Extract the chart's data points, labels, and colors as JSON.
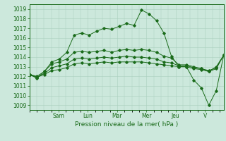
{
  "xlabel": "Pression niveau de la mer( hPa )",
  "bg_color": "#cce8dc",
  "grid_color": "#aacfbe",
  "line_color": "#1a6b1a",
  "ylim": [
    1008.5,
    1019.5
  ],
  "yticks": [
    1009,
    1010,
    1011,
    1012,
    1013,
    1014,
    1015,
    1016,
    1017,
    1018,
    1019
  ],
  "day_labels": [
    "Sam",
    "Lun",
    "Mar",
    "Mer",
    "Jeu",
    "V"
  ],
  "day_positions": [
    28,
    56,
    84,
    112,
    140,
    168
  ],
  "xlim": [
    0,
    186
  ],
  "series1": [
    1012.2,
    1011.8,
    1012.5,
    1013.5,
    1013.8,
    1014.5,
    1016.3,
    1016.5,
    1016.3,
    1016.7,
    1017.0,
    1016.9,
    1017.2,
    1017.5,
    1017.3,
    1018.9,
    1018.5,
    1017.8,
    1016.5,
    1014.1,
    1013.0,
    1013.0,
    1011.6,
    1010.8,
    1009.0,
    1010.5,
    1014.2
  ],
  "series2": [
    1012.2,
    1012.0,
    1012.5,
    1013.3,
    1013.5,
    1013.8,
    1014.5,
    1014.6,
    1014.5,
    1014.6,
    1014.7,
    1014.5,
    1014.7,
    1014.8,
    1014.7,
    1014.8,
    1014.7,
    1014.5,
    1014.1,
    1013.9,
    1013.2,
    1013.2,
    1013.0,
    1012.8,
    1012.5,
    1013.0,
    1014.2
  ],
  "series3": [
    1012.2,
    1011.9,
    1012.3,
    1012.9,
    1013.1,
    1013.3,
    1013.8,
    1013.9,
    1013.8,
    1013.9,
    1014.0,
    1013.9,
    1014.0,
    1014.1,
    1014.0,
    1014.0,
    1013.9,
    1013.8,
    1013.5,
    1013.4,
    1013.1,
    1013.1,
    1012.9,
    1012.8,
    1012.6,
    1012.9,
    1014.2
  ],
  "series4": [
    1012.2,
    1011.9,
    1012.2,
    1012.6,
    1012.7,
    1012.9,
    1013.3,
    1013.4,
    1013.3,
    1013.4,
    1013.5,
    1013.4,
    1013.5,
    1013.5,
    1013.5,
    1013.5,
    1013.4,
    1013.3,
    1013.2,
    1013.1,
    1013.0,
    1013.0,
    1012.8,
    1012.7,
    1012.5,
    1012.8,
    1014.2
  ]
}
